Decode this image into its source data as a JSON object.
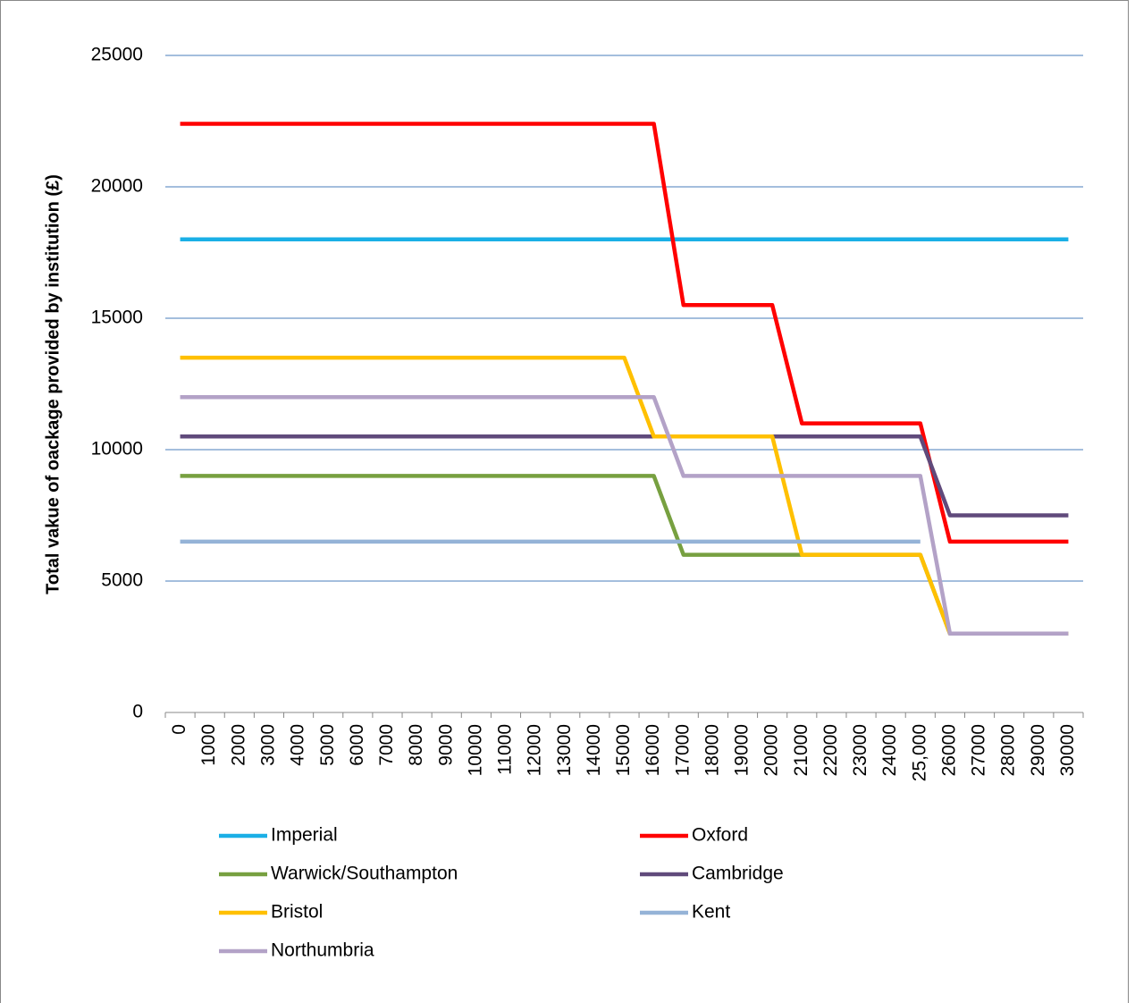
{
  "chart_data": {
    "type": "line",
    "y_label": "Total vakue of oackage provided by institution (£)",
    "categories": [
      "0",
      "1000",
      "2000",
      "3000",
      "4000",
      "5000",
      "6000",
      "7000",
      "8000",
      "9000",
      "10000",
      "11000",
      "12000",
      "13000",
      "14000",
      "15000",
      "16000",
      "17000",
      "18000",
      "19000",
      "20000",
      "21000",
      "22000",
      "23000",
      "24000",
      "25,000",
      "26000",
      "27000",
      "28000",
      "29000",
      "30000"
    ],
    "series": [
      {
        "name": "Imperial",
        "color": "#1aafe6",
        "values": [
          18000,
          18000,
          18000,
          18000,
          18000,
          18000,
          18000,
          18000,
          18000,
          18000,
          18000,
          18000,
          18000,
          18000,
          18000,
          18000,
          18000,
          18000,
          18000,
          18000,
          18000,
          18000,
          18000,
          18000,
          18000,
          18000,
          18000,
          18000,
          18000,
          18000,
          18000
        ]
      },
      {
        "name": "Oxford",
        "color": "#ff0000",
        "values": [
          22400,
          22400,
          22400,
          22400,
          22400,
          22400,
          22400,
          22400,
          22400,
          22400,
          22400,
          22400,
          22400,
          22400,
          22400,
          22400,
          22400,
          15500,
          15500,
          15500,
          15500,
          11000,
          11000,
          11000,
          11000,
          11000,
          6500,
          6500,
          6500,
          6500,
          6500
        ]
      },
      {
        "name": "Warwick/Southampton",
        "color": "#77a040",
        "values": [
          9000,
          9000,
          9000,
          9000,
          9000,
          9000,
          9000,
          9000,
          9000,
          9000,
          9000,
          9000,
          9000,
          9000,
          9000,
          9000,
          9000,
          6000,
          6000,
          6000,
          6000,
          6000,
          6000,
          6000,
          6000,
          6000,
          3000,
          3000,
          3000,
          3000,
          3000
        ]
      },
      {
        "name": "Cambridge",
        "color": "#604a7b",
        "values": [
          10500,
          10500,
          10500,
          10500,
          10500,
          10500,
          10500,
          10500,
          10500,
          10500,
          10500,
          10500,
          10500,
          10500,
          10500,
          10500,
          10500,
          10500,
          10500,
          10500,
          10500,
          10500,
          10500,
          10500,
          10500,
          10500,
          7500,
          7500,
          7500,
          7500,
          7500
        ]
      },
      {
        "name": "Bristol",
        "color": "#ffc000",
        "values": [
          13500,
          13500,
          13500,
          13500,
          13500,
          13500,
          13500,
          13500,
          13500,
          13500,
          13500,
          13500,
          13500,
          13500,
          13500,
          13500,
          10500,
          10500,
          10500,
          10500,
          10500,
          6000,
          6000,
          6000,
          6000,
          6000,
          3000,
          3000,
          3000,
          3000,
          3000
        ]
      },
      {
        "name": "Kent",
        "color": "#95b3d7",
        "values": [
          6500,
          6500,
          6500,
          6500,
          6500,
          6500,
          6500,
          6500,
          6500,
          6500,
          6500,
          6500,
          6500,
          6500,
          6500,
          6500,
          6500,
          6500,
          6500,
          6500,
          6500,
          6500,
          6500,
          6500,
          6500,
          6500,
          null,
          null,
          null,
          null,
          null
        ]
      },
      {
        "name": "Northumbria",
        "color": "#b3a2c7",
        "values": [
          12000,
          12000,
          12000,
          12000,
          12000,
          12000,
          12000,
          12000,
          12000,
          12000,
          12000,
          12000,
          12000,
          12000,
          12000,
          12000,
          12000,
          9000,
          9000,
          9000,
          9000,
          9000,
          9000,
          9000,
          9000,
          9000,
          3000,
          3000,
          3000,
          3000,
          3000
        ]
      }
    ],
    "ylim": [
      0,
      25000
    ],
    "yticks": [
      0,
      5000,
      10000,
      15000,
      20000,
      25000
    ],
    "grid": true
  }
}
